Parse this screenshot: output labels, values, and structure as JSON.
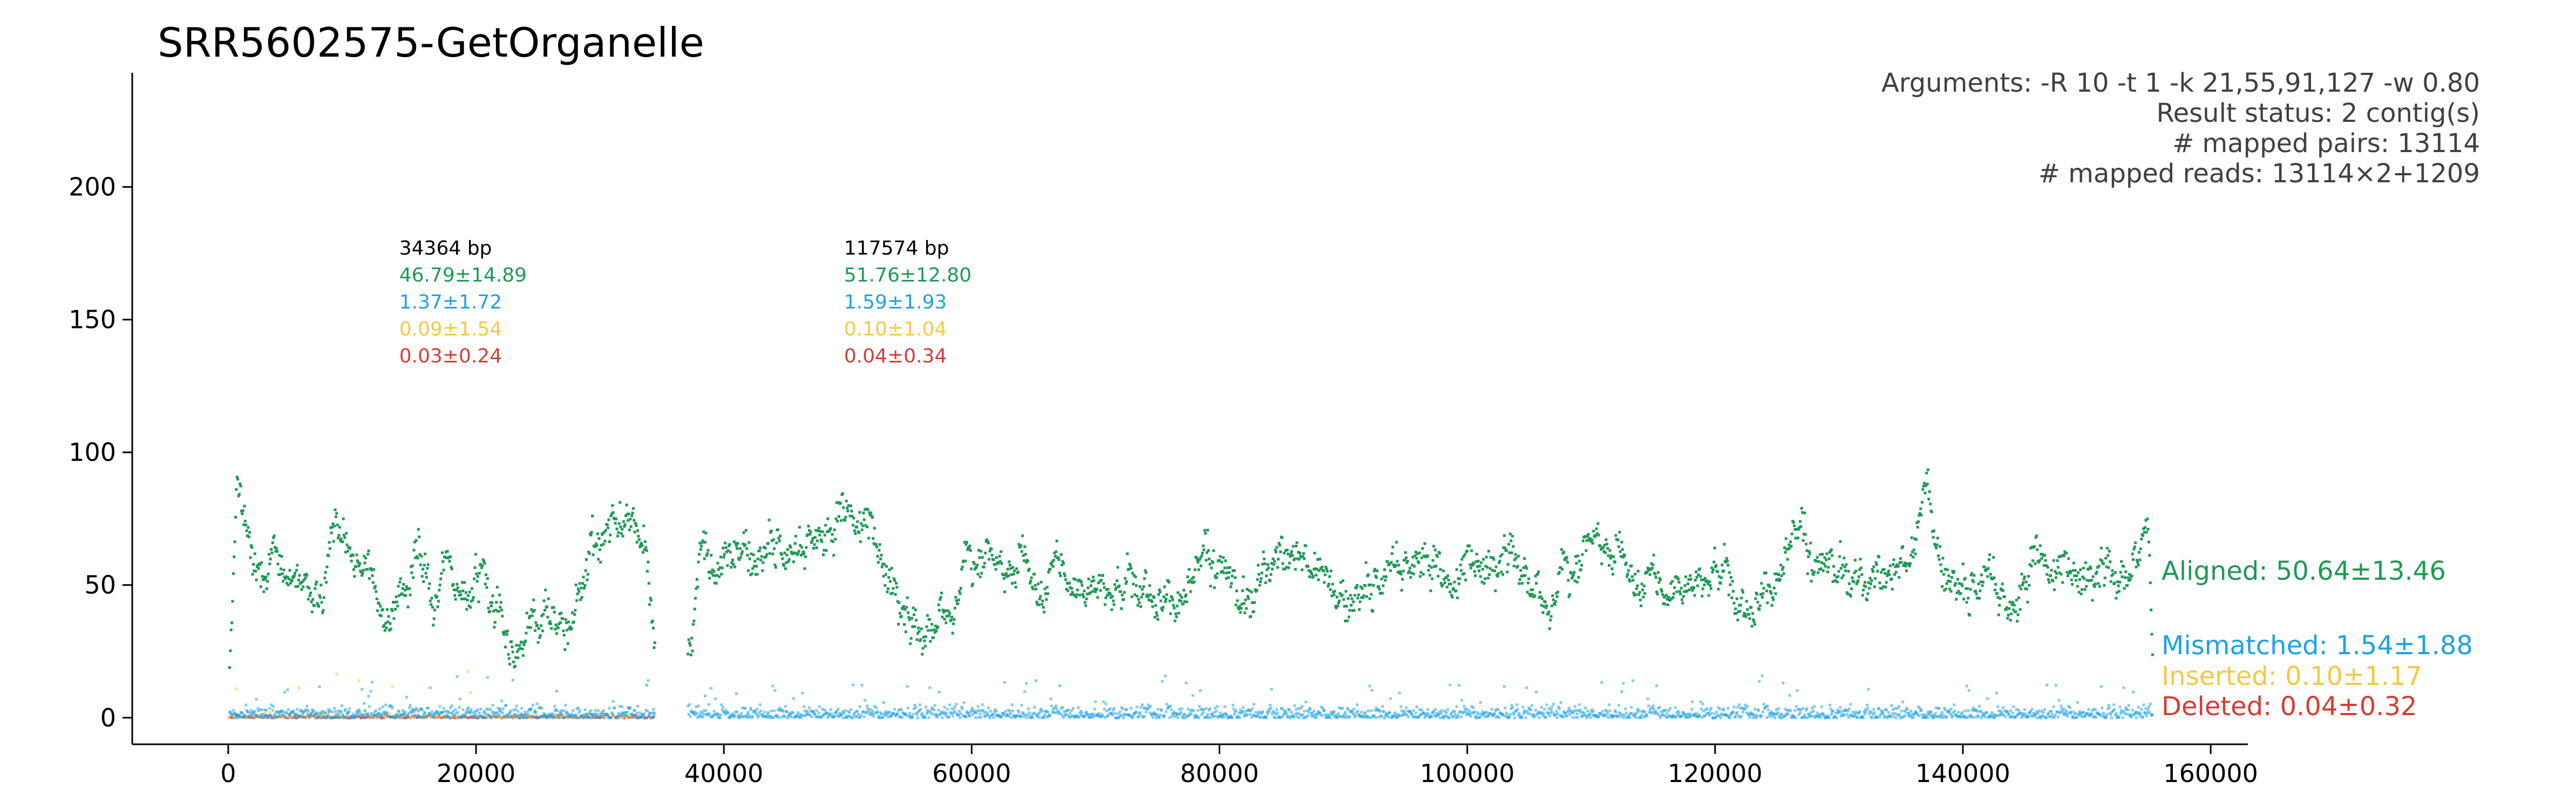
{
  "title": "SRR5602575-GetOrganelle",
  "info_lines": [
    "Arguments: -R 10 -t 1 -k 21,55,91,127 -w 0.80",
    "Result status: 2 contig(s)",
    "# mapped pairs: 13114",
    "# mapped reads: 13114×2+1209"
  ],
  "colors": {
    "aligned": "#1f9955",
    "mismatched": "#1ea1e6",
    "inserted": "#f5c845",
    "deleted": "#d63c35",
    "axis": "#000000",
    "info_text": "#404040"
  },
  "chart_data": {
    "type": "scatter",
    "title": "SRR5602575-GetOrganelle",
    "xlabel": "",
    "ylabel": "",
    "xlim": [
      -7750,
      163000
    ],
    "ylim": [
      -10,
      243
    ],
    "xticks": [
      0,
      20000,
      40000,
      60000,
      80000,
      100000,
      120000,
      140000,
      160000
    ],
    "xtick_labels": [
      "0",
      "20000",
      "40000",
      "60000",
      "80000",
      "100000",
      "120000",
      "140000",
      "160000"
    ],
    "yticks": [
      0,
      50,
      100,
      150,
      200
    ],
    "ytick_labels": [
      "0",
      "50",
      "100",
      "150",
      "200"
    ],
    "grid": false,
    "contigs": [
      {
        "x_range": [
          0,
          34364
        ],
        "length_label": "34364 bp",
        "stats": [
          "46.79±14.89",
          "1.37±1.72",
          "0.09±1.54",
          "0.03±0.24"
        ],
        "aligned_profile": [
          [
            0,
            15
          ],
          [
            600,
            80
          ],
          [
            1500,
            70
          ],
          [
            2500,
            58
          ],
          [
            3500,
            68
          ],
          [
            4500,
            48
          ],
          [
            5500,
            55
          ],
          [
            6500,
            46
          ],
          [
            7500,
            50
          ],
          [
            8500,
            60
          ],
          [
            9500,
            53
          ],
          [
            10500,
            44
          ],
          [
            11500,
            62
          ],
          [
            12500,
            47
          ],
          [
            13500,
            40
          ],
          [
            14500,
            48
          ],
          [
            15500,
            52
          ],
          [
            16500,
            44
          ],
          [
            17500,
            58
          ],
          [
            18500,
            50
          ],
          [
            19500,
            56
          ],
          [
            20500,
            65
          ],
          [
            21500,
            55
          ],
          [
            22500,
            35
          ],
          [
            23500,
            28
          ],
          [
            24500,
            40
          ],
          [
            25500,
            48
          ],
          [
            26500,
            33
          ],
          [
            27500,
            28
          ],
          [
            28500,
            38
          ],
          [
            29500,
            55
          ],
          [
            30500,
            62
          ],
          [
            31500,
            70
          ],
          [
            32500,
            78
          ],
          [
            33500,
            68
          ],
          [
            34364,
            20
          ]
        ]
      },
      {
        "x_range": [
          37000,
          155200
        ],
        "length_label": "117574 bp",
        "stats": [
          "51.76±12.80",
          "1.59±1.93",
          "0.10±1.04",
          "0.04±0.34"
        ],
        "aligned_profile": [
          [
            37000,
            25
          ],
          [
            38000,
            58
          ],
          [
            39500,
            52
          ],
          [
            41000,
            65
          ],
          [
            42500,
            58
          ],
          [
            44000,
            68
          ],
          [
            45500,
            60
          ],
          [
            47000,
            72
          ],
          [
            48500,
            68
          ],
          [
            50000,
            78
          ],
          [
            51500,
            74
          ],
          [
            53000,
            52
          ],
          [
            54000,
            40
          ],
          [
            55000,
            30
          ],
          [
            56500,
            38
          ],
          [
            58000,
            45
          ],
          [
            59500,
            55
          ],
          [
            61000,
            62
          ],
          [
            62500,
            55
          ],
          [
            64000,
            60
          ],
          [
            65500,
            52
          ],
          [
            67000,
            58
          ],
          [
            68500,
            48
          ],
          [
            70000,
            52
          ],
          [
            72000,
            50
          ],
          [
            74000,
            58
          ],
          [
            76000,
            52
          ],
          [
            78000,
            46
          ],
          [
            80000,
            56
          ],
          [
            82000,
            48
          ],
          [
            84000,
            60
          ],
          [
            86000,
            68
          ],
          [
            88000,
            55
          ],
          [
            90000,
            42
          ],
          [
            92000,
            50
          ],
          [
            94000,
            58
          ],
          [
            96000,
            62
          ],
          [
            98000,
            50
          ],
          [
            100000,
            58
          ],
          [
            102000,
            52
          ],
          [
            104000,
            62
          ],
          [
            106000,
            48
          ],
          [
            108000,
            52
          ],
          [
            110000,
            68
          ],
          [
            112000,
            62
          ],
          [
            114000,
            55
          ],
          [
            116000,
            48
          ],
          [
            118000,
            52
          ],
          [
            120000,
            58
          ],
          [
            122000,
            50
          ],
          [
            124000,
            56
          ],
          [
            126000,
            60
          ],
          [
            128000,
            55
          ],
          [
            130000,
            62
          ],
          [
            132000,
            52
          ],
          [
            134000,
            60
          ],
          [
            136000,
            64
          ],
          [
            137000,
            90
          ],
          [
            138000,
            56
          ],
          [
            140000,
            48
          ],
          [
            142000,
            55
          ],
          [
            144000,
            42
          ],
          [
            146000,
            60
          ],
          [
            148000,
            56
          ],
          [
            150000,
            48
          ],
          [
            152000,
            55
          ],
          [
            154000,
            62
          ],
          [
            154800,
            88
          ],
          [
            155200,
            30
          ]
        ]
      }
    ],
    "series": [
      {
        "name": "Aligned",
        "label": "Aligned: 50.64±13.46",
        "color": "#1f9955",
        "mean": 50.64,
        "std": 13.46
      },
      {
        "name": "Mismatched",
        "label": "Mismatched: 1.54±1.88",
        "color": "#1ea1e6",
        "mean": 1.54,
        "std": 1.88
      },
      {
        "name": "Inserted",
        "label": "Inserted: 0.10±1.17",
        "color": "#f5c845",
        "mean": 0.1,
        "std": 1.17
      },
      {
        "name": "Deleted",
        "label": "Deleted: 0.04±0.32",
        "color": "#d63c35",
        "mean": 0.04,
        "std": 0.32
      }
    ],
    "legend_placement": "right"
  }
}
